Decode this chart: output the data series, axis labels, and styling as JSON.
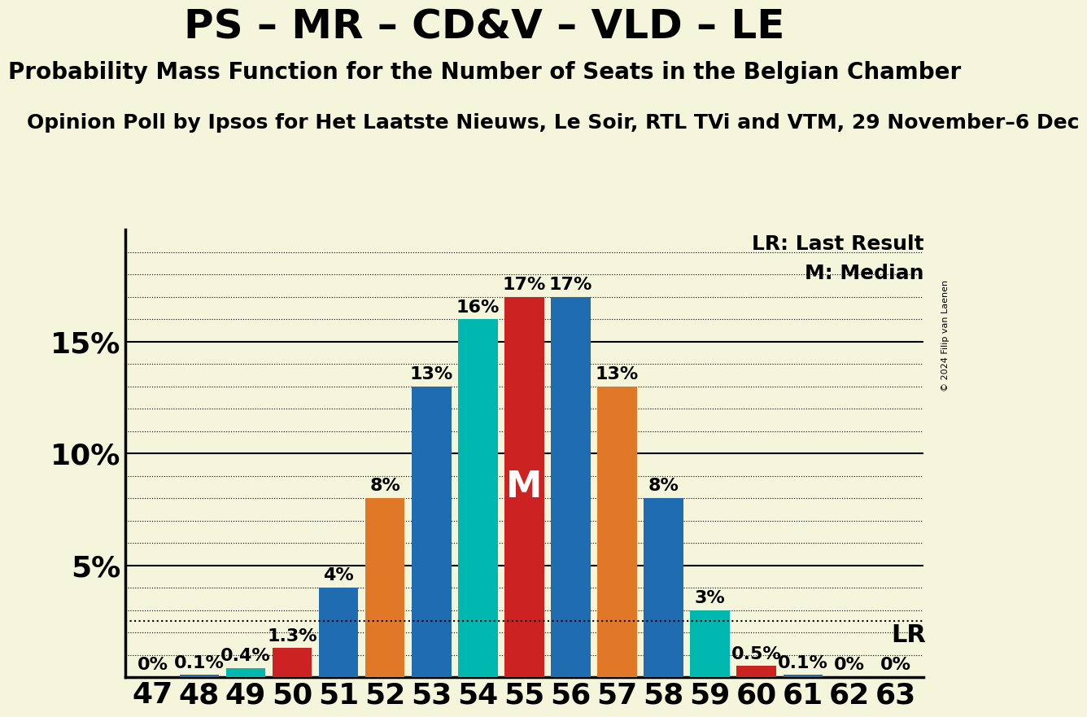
{
  "title": "PS – MR – CD&V – VLD – LE",
  "subtitle": "Probability Mass Function for the Number of Seats in the Belgian Chamber",
  "source_line": "Opinion Poll by Ipsos for Het Laatste Nieuws, Le Soir, RTL TVi and VTM, 29 November–6 Dec",
  "copyright": "© 2024 Filip van Laenen",
  "legend_lr": "LR: Last Result",
  "legend_m": "M: Median",
  "seats": [
    47,
    48,
    49,
    50,
    51,
    52,
    53,
    54,
    55,
    56,
    57,
    58,
    59,
    60,
    61,
    62,
    63
  ],
  "probabilities": [
    0.02,
    0.1,
    0.4,
    1.3,
    4.0,
    8.0,
    13.0,
    16.0,
    17.0,
    17.0,
    13.0,
    8.0,
    3.0,
    0.5,
    0.1,
    0.02,
    0.02
  ],
  "labels": [
    "0%",
    "0.1%",
    "0.4%",
    "1.3%",
    "4%",
    "8%",
    "13%",
    "16%",
    "17%",
    "17%",
    "13%",
    "8%",
    "3%",
    "0.5%",
    "0.1%",
    "0%",
    "0%"
  ],
  "median_seat": 55,
  "lr_value": 2.5,
  "bar_colors": [
    "#1f6cb0",
    "#1f6cb0",
    "#00b8b0",
    "#cc2222",
    "#1f6cb0",
    "#e07828",
    "#1f6cb0",
    "#00b8b0",
    "#cc2222",
    "#1f6cb0",
    "#e07828",
    "#1f6cb0",
    "#00b8b0",
    "#cc2222",
    "#1f6cb0",
    "#1f6cb0",
    "#1f6cb0"
  ],
  "background_color": "#f5f5dc",
  "title_fontsize": 36,
  "subtitle_fontsize": 20,
  "source_fontsize": 18,
  "bar_label_fontsize": 16,
  "tick_fontsize": 26,
  "legend_fontsize": 18,
  "lr_label_fontsize": 22,
  "m_fontsize": 32
}
